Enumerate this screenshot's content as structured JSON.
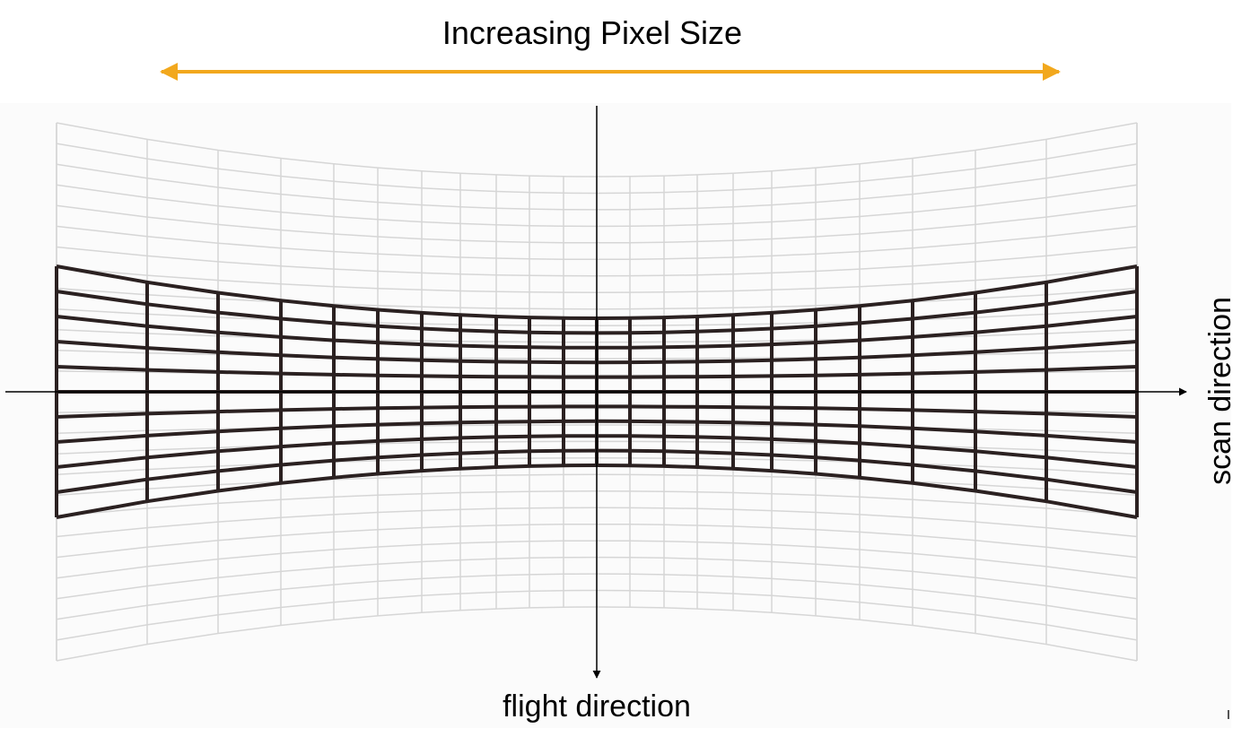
{
  "title": "Increasing Pixel Size",
  "labels": {
    "flight_direction": "flight direction",
    "scan_direction": "scan direction"
  },
  "colors": {
    "size_arrow": "#f2a81d",
    "footprint_grid": "#2b2121",
    "background_grid": "#d6d6d6",
    "axes": "#000000"
  }
}
